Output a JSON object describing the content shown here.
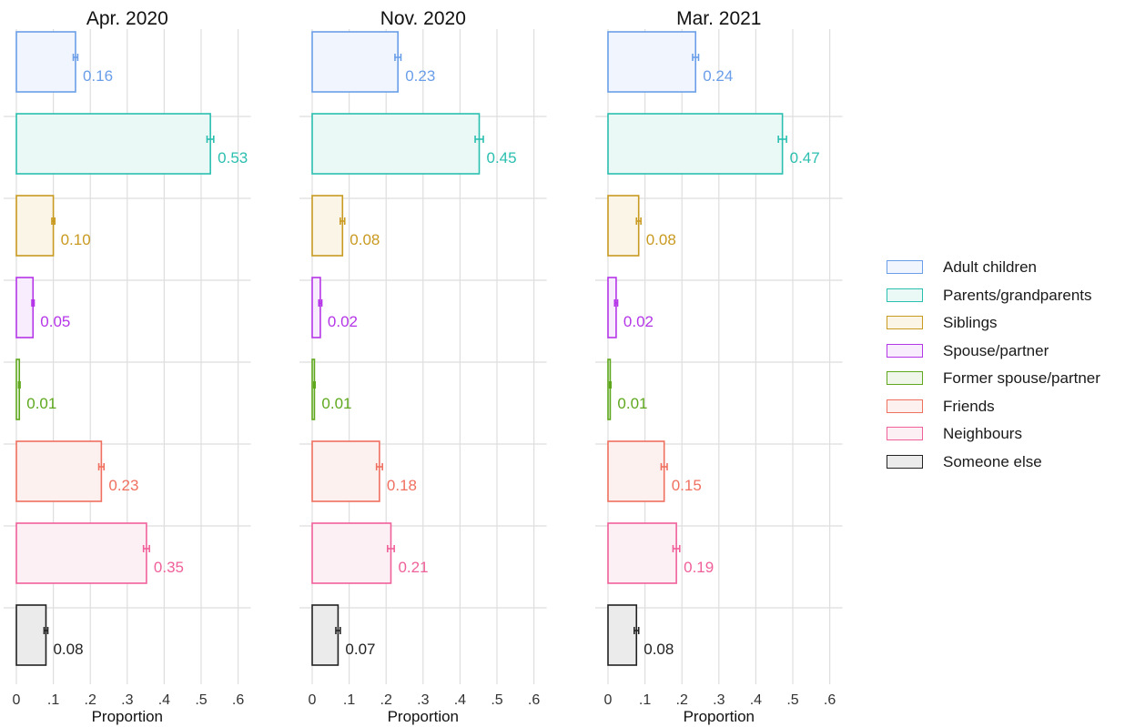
{
  "chart_data": {
    "type": "bar",
    "orientation": "horizontal",
    "grid": true,
    "legend_position": "right",
    "xlim": [
      0,
      0.6
    ],
    "x_ticks": [
      "0",
      ".1",
      ".2",
      ".3",
      ".4",
      ".5",
      ".6"
    ],
    "xlabel": "Proportion",
    "categories": [
      "Adult children",
      "Parents/grandparents",
      "Siblings",
      "Spouse/partner",
      "Former spouse/partner",
      "Friends",
      "Neighbours",
      "Someone else"
    ],
    "colors": [
      "#6a9ee8",
      "#2bbfb0",
      "#c99a20",
      "#b535e8",
      "#5fa81e",
      "#f07060",
      "#f0609a",
      "#222222"
    ],
    "fills": [
      "#f1f5fd",
      "#eaf8f6",
      "#faf5e7",
      "#f8edfd",
      "#f0f6ea",
      "#fdf1ef",
      "#fdf0f5",
      "#ebebeb"
    ],
    "panels": [
      {
        "title": "Apr. 2020",
        "values": [
          0.16,
          0.525,
          0.1,
          0.045,
          0.008,
          0.23,
          0.352,
          0.08
        ],
        "errors": [
          0.006,
          0.009,
          0.004,
          0.003,
          0.002,
          0.007,
          0.008,
          0.005
        ],
        "labels": [
          "0.16",
          "0.53",
          "0.10",
          "0.05",
          "0.01",
          "0.23",
          "0.35",
          "0.08"
        ]
      },
      {
        "title": "Nov. 2020",
        "values": [
          0.232,
          0.452,
          0.082,
          0.022,
          0.006,
          0.182,
          0.213,
          0.07
        ],
        "errors": [
          0.008,
          0.011,
          0.006,
          0.004,
          0.002,
          0.008,
          0.009,
          0.006
        ],
        "labels": [
          "0.23",
          "0.45",
          "0.08",
          "0.02",
          "0.01",
          "0.18",
          "0.21",
          "0.07"
        ]
      },
      {
        "title": "Mar. 2021",
        "values": [
          0.237,
          0.472,
          0.083,
          0.022,
          0.006,
          0.152,
          0.185,
          0.077
        ],
        "errors": [
          0.008,
          0.011,
          0.006,
          0.004,
          0.002,
          0.008,
          0.009,
          0.006
        ],
        "labels": [
          "0.24",
          "0.47",
          "0.08",
          "0.02",
          "0.01",
          "0.15",
          "0.19",
          "0.08"
        ]
      }
    ]
  }
}
